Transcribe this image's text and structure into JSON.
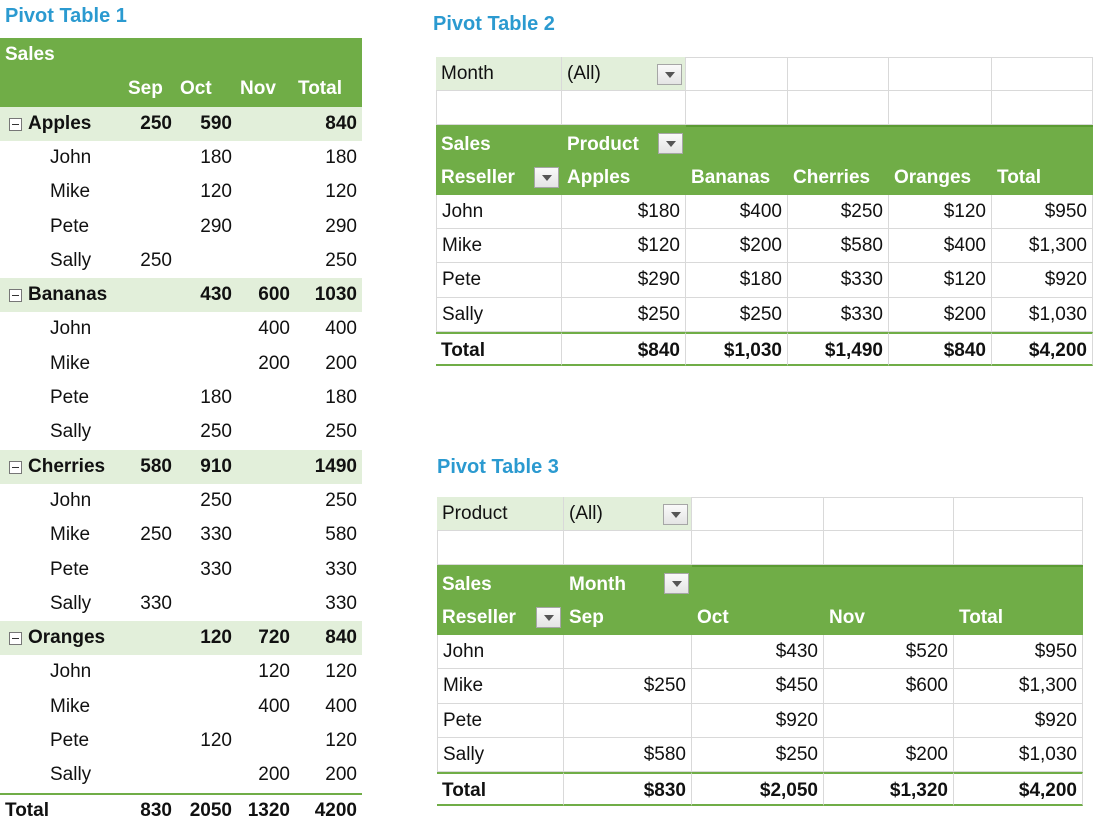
{
  "pivot_table_1": {
    "title": "Pivot Table 1",
    "value_header": "Sales",
    "columns": [
      "Sep",
      "Oct",
      "Nov",
      "Total"
    ],
    "groups": [
      {
        "name": "Apples",
        "values": [
          250,
          590,
          null,
          840
        ],
        "rows": [
          {
            "name": "John",
            "values": [
              null,
              180,
              null,
              180
            ]
          },
          {
            "name": "Mike",
            "values": [
              null,
              120,
              null,
              120
            ]
          },
          {
            "name": "Pete",
            "values": [
              null,
              290,
              null,
              290
            ]
          },
          {
            "name": "Sally",
            "values": [
              250,
              null,
              null,
              250
            ]
          }
        ]
      },
      {
        "name": "Bananas",
        "values": [
          null,
          430,
          600,
          1030
        ],
        "rows": [
          {
            "name": "John",
            "values": [
              null,
              null,
              400,
              400
            ]
          },
          {
            "name": "Mike",
            "values": [
              null,
              null,
              200,
              200
            ]
          },
          {
            "name": "Pete",
            "values": [
              null,
              180,
              null,
              180
            ]
          },
          {
            "name": "Sally",
            "values": [
              null,
              250,
              null,
              250
            ]
          }
        ]
      },
      {
        "name": "Cherries",
        "values": [
          580,
          910,
          null,
          1490
        ],
        "rows": [
          {
            "name": "John",
            "values": [
              null,
              250,
              null,
              250
            ]
          },
          {
            "name": "Mike",
            "values": [
              250,
              330,
              null,
              580
            ]
          },
          {
            "name": "Pete",
            "values": [
              null,
              330,
              null,
              330
            ]
          },
          {
            "name": "Sally",
            "values": [
              330,
              null,
              null,
              330
            ]
          }
        ]
      },
      {
        "name": "Oranges",
        "values": [
          null,
          120,
          720,
          840
        ],
        "rows": [
          {
            "name": "John",
            "values": [
              null,
              null,
              120,
              120
            ]
          },
          {
            "name": "Mike",
            "values": [
              null,
              null,
              400,
              400
            ]
          },
          {
            "name": "Pete",
            "values": [
              null,
              120,
              null,
              120
            ]
          },
          {
            "name": "Sally",
            "values": [
              null,
              null,
              200,
              200
            ]
          }
        ]
      }
    ],
    "total": {
      "label": "Total",
      "values": [
        830,
        2050,
        1320,
        4200
      ]
    }
  },
  "pivot_table_2": {
    "title": "Pivot Table 2",
    "filter": {
      "label": "Month",
      "value": "(All)"
    },
    "value_header": "Sales",
    "column_field": "Product",
    "row_field": "Reseller",
    "columns": [
      "Apples",
      "Bananas",
      "Cherries",
      "Oranges",
      "Total"
    ],
    "rows": [
      {
        "name": "John",
        "values": [
          "$180",
          "$400",
          "$250",
          "$120",
          "$950"
        ]
      },
      {
        "name": "Mike",
        "values": [
          "$120",
          "$200",
          "$580",
          "$400",
          "$1,300"
        ]
      },
      {
        "name": "Pete",
        "values": [
          "$290",
          "$180",
          "$330",
          "$120",
          "$920"
        ]
      },
      {
        "name": "Sally",
        "values": [
          "$250",
          "$250",
          "$330",
          "$200",
          "$1,030"
        ]
      }
    ],
    "total": {
      "label": "Total",
      "values": [
        "$840",
        "$1,030",
        "$1,490",
        "$840",
        "$4,200"
      ]
    }
  },
  "pivot_table_3": {
    "title": "Pivot Table 3",
    "filter": {
      "label": "Product",
      "value": "(All)"
    },
    "value_header": "Sales",
    "column_field": "Month",
    "row_field": "Reseller",
    "columns": [
      "Sep",
      "Oct",
      "Nov",
      "Total"
    ],
    "rows": [
      {
        "name": "John",
        "values": [
          null,
          "$430",
          "$520",
          "$950"
        ]
      },
      {
        "name": "Mike",
        "values": [
          "$250",
          "$450",
          "$600",
          "$1,300"
        ]
      },
      {
        "name": "Pete",
        "values": [
          null,
          "$920",
          null,
          "$920"
        ]
      },
      {
        "name": "Sally",
        "values": [
          "$580",
          "$250",
          "$200",
          "$1,030"
        ]
      }
    ],
    "total": {
      "label": "Total",
      "values": [
        "$830",
        "$2,050",
        "$1,320",
        "$4,200"
      ]
    }
  }
}
